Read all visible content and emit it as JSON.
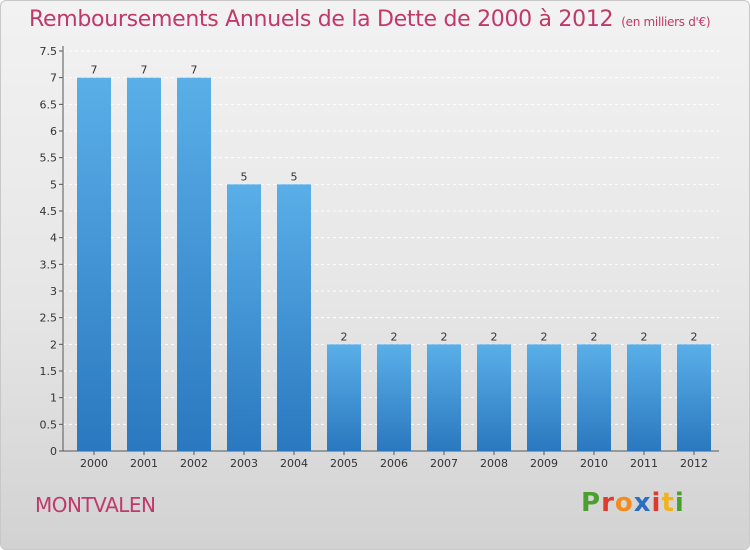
{
  "header": {
    "title": "Remboursements Annuels de la Dette de 2000 à 2012",
    "subtitle": "(en milliers d'€)"
  },
  "footer": {
    "commune": "MONTVALEN",
    "logo_letters": [
      "P",
      "r",
      "o",
      "x",
      "i",
      "t",
      "i"
    ],
    "logo_colors": [
      "#4aa02c",
      "#e03a2e",
      "#f28c1e",
      "#2a6fc0",
      "#e03a2e",
      "#f2b21e",
      "#4aa02c"
    ]
  },
  "chart_data": {
    "type": "bar",
    "categories": [
      "2000",
      "2001",
      "2002",
      "2003",
      "2004",
      "2005",
      "2006",
      "2007",
      "2008",
      "2009",
      "2010",
      "2011",
      "2012"
    ],
    "values": [
      7,
      7,
      7,
      5,
      5,
      2,
      2,
      2,
      2,
      2,
      2,
      2,
      2
    ],
    "data_labels": [
      "7",
      "7",
      "7",
      "5",
      "5",
      "2",
      "2",
      "2",
      "2",
      "2",
      "2",
      "2",
      "2"
    ],
    "yticks": [
      "0",
      "0.5",
      "1",
      "1.5",
      "2",
      "2.5",
      "3",
      "3.5",
      "4",
      "4.5",
      "5",
      "5.5",
      "6",
      "6.5",
      "7",
      "7.5"
    ],
    "ylim": [
      0,
      7.5
    ],
    "grid": true,
    "bar_color_light": "#5aafe8",
    "bar_color_dark": "#2a78bf"
  }
}
